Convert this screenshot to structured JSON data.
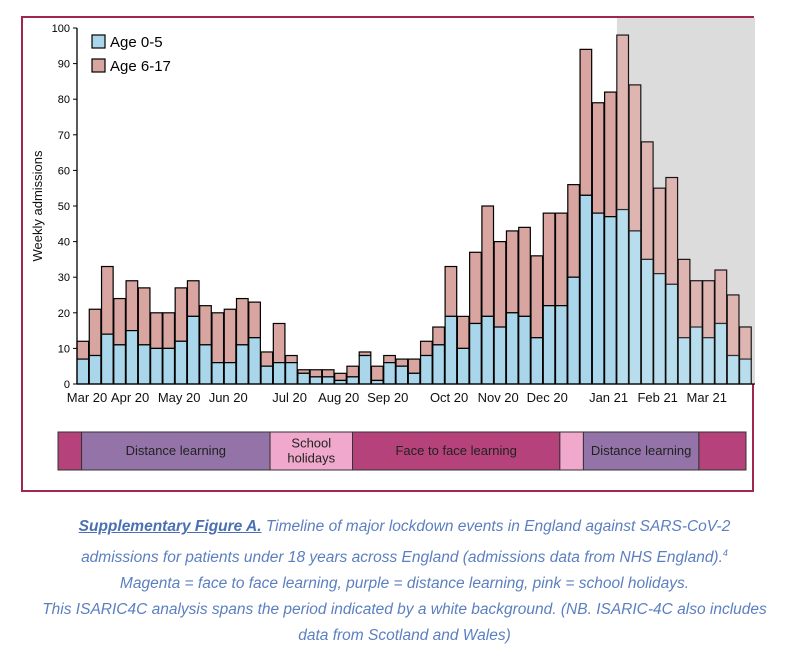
{
  "chart_data": {
    "type": "bar",
    "stacked": true,
    "ylabel": "Weekly admissions",
    "ylim": [
      0,
      100
    ],
    "yticks": [
      0,
      10,
      20,
      30,
      40,
      50,
      60,
      70,
      80,
      90,
      100
    ],
    "month_labels": [
      "Mar 20",
      "Apr 20",
      "May 20",
      "Jun 20",
      "Jul 20",
      "Aug 20",
      "Sep 20",
      "Oct 20",
      "Nov 20",
      "Dec 20",
      "Jan 21",
      "Feb 21",
      "Mar 21"
    ],
    "month_start_week": [
      0,
      4,
      8,
      12,
      17,
      21,
      25,
      30,
      34,
      38,
      43,
      47,
      51
    ],
    "shaded_from_week": 44,
    "legend": {
      "position": "top-left"
    },
    "series": [
      {
        "name": "Age 0-5",
        "color": "#a9d6ea",
        "values": [
          7,
          8,
          14,
          11,
          15,
          11,
          10,
          10,
          12,
          19,
          11,
          6,
          6,
          11,
          13,
          5,
          6,
          6,
          3,
          2,
          2,
          1,
          2,
          8,
          1,
          6,
          5,
          3,
          8,
          11,
          19,
          10,
          17,
          19,
          16,
          20,
          19,
          13,
          22,
          22,
          30,
          53,
          48,
          47,
          49,
          43,
          35,
          31,
          28,
          13,
          16,
          13,
          17,
          8,
          7
        ]
      },
      {
        "name": "Age 6-17",
        "color": "#d8a5a0",
        "values": [
          5,
          13,
          19,
          13,
          14,
          16,
          10,
          10,
          15,
          10,
          11,
          14,
          15,
          13,
          10,
          4,
          11,
          2,
          1,
          2,
          2,
          2,
          3,
          1,
          4,
          2,
          2,
          4,
          4,
          5,
          14,
          9,
          20,
          31,
          24,
          23,
          25,
          23,
          26,
          26,
          26,
          41,
          31,
          35,
          49,
          41,
          33,
          24,
          30,
          22,
          13,
          16,
          15,
          17,
          9
        ]
      }
    ],
    "timeline": [
      {
        "label": "",
        "color": "#b5427a",
        "weeks": 1
      },
      {
        "label": "Distance learning",
        "color": "#9474a8",
        "weeks": 8
      },
      {
        "label": "School\nholidays",
        "color": "#f0a9cc",
        "weeks": 3.5
      },
      {
        "label": "Face to face learning",
        "color": "#b5427a",
        "weeks": 8.8
      },
      {
        "label": "",
        "color": "#f0a9cc",
        "weeks": 1
      },
      {
        "label": "Distance learning",
        "color": "#9474a8",
        "weeks": 4.9
      },
      {
        "label": "",
        "color": "#b5427a",
        "weeks": 2
      }
    ]
  },
  "caption": {
    "title": "Supplementary Figure A.",
    "line1": "Timeline of major lockdown events in England against SARS-CoV-2",
    "line2": "admissions for patients under 18 years across England (admissions data from NHS England).",
    "line2_sup": "4",
    "line3": "Magenta = face to face learning, purple = distance learning, pink = school holidays.",
    "line4": "This ISARIC4C analysis spans the period indicated by a white background.  (NB. ISARIC-4C also includes",
    "line5": "data from Scotland and Wales)"
  }
}
